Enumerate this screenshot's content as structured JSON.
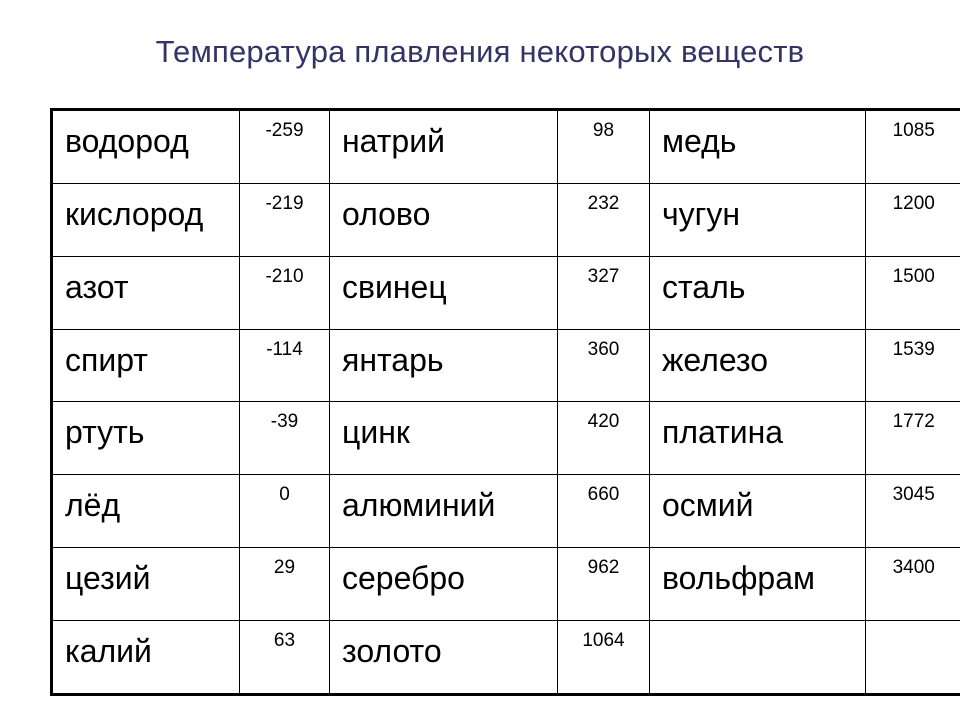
{
  "title": "Температура плавления некоторых веществ",
  "table": {
    "rows": [
      [
        {
          "name": "водород",
          "value": "-259"
        },
        {
          "name": "натрий",
          "value": "98"
        },
        {
          "name": "медь",
          "value": "1085"
        }
      ],
      [
        {
          "name": "кислород",
          "value": "-219"
        },
        {
          "name": "олово",
          "value": "232"
        },
        {
          "name": "чугун",
          "value": "1200"
        }
      ],
      [
        {
          "name": "азот",
          "value": "-210"
        },
        {
          "name": "свинец",
          "value": "327"
        },
        {
          "name": "сталь",
          "value": "1500"
        }
      ],
      [
        {
          "name": "спирт",
          "value": "-114"
        },
        {
          "name": "янтарь",
          "value": "360"
        },
        {
          "name": "железо",
          "value": "1539"
        }
      ],
      [
        {
          "name": "ртуть",
          "value": "-39"
        },
        {
          "name": "цинк",
          "value": "420"
        },
        {
          "name": "платина",
          "value": "1772"
        }
      ],
      [
        {
          "name": "лёд",
          "value": "0"
        },
        {
          "name": "алюминий",
          "value": "660"
        },
        {
          "name": "осмий",
          "value": "3045"
        }
      ],
      [
        {
          "name": "цезий",
          "value": "29"
        },
        {
          "name": "серебро",
          "value": "962"
        },
        {
          "name": "вольфрам",
          "value": "3400"
        }
      ],
      [
        {
          "name": "калий",
          "value": "63"
        },
        {
          "name": "золото",
          "value": "1064"
        },
        {
          "name": "",
          "value": ""
        }
      ]
    ]
  }
}
